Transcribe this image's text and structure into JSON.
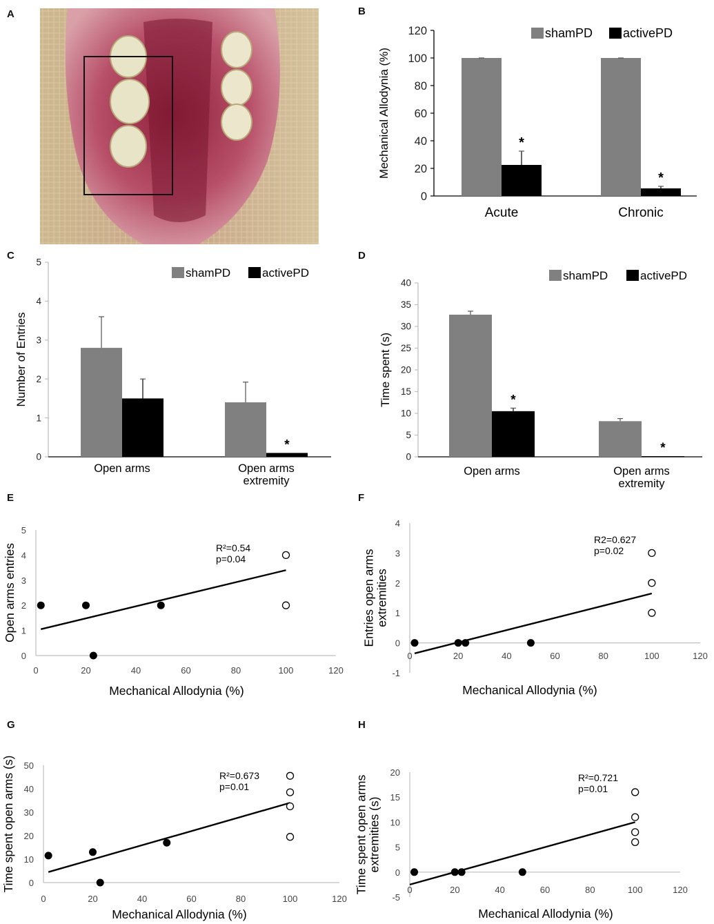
{
  "panel_labels": [
    "A",
    "B",
    "C",
    "D",
    "E",
    "F",
    "G",
    "H"
  ],
  "photo": {
    "description": "Rat maxilla with periodontal disease region boxed"
  },
  "colors": {
    "sham": "#808080",
    "active": "#000000",
    "axis": "#000000",
    "soft_axis": "#bfbfbf"
  },
  "chart_data": [
    {
      "id": "B",
      "type": "bar",
      "ylabel": "Mechanical Allodynia (%)",
      "ylim": [
        0,
        120
      ],
      "yticks": [
        0,
        20,
        40,
        60,
        80,
        100,
        120
      ],
      "categories": [
        "Acute",
        "Chronic"
      ],
      "legend": [
        "shamPD",
        "activePD"
      ],
      "series": [
        {
          "name": "shamPD",
          "values": [
            100,
            100
          ],
          "errors": [
            0,
            0
          ]
        },
        {
          "name": "activePD",
          "values": [
            22.5,
            5.5
          ],
          "errors": [
            10,
            1.5
          ]
        }
      ],
      "stars": [
        "*",
        "*"
      ]
    },
    {
      "id": "C",
      "type": "bar",
      "ylabel": "Number of Entries",
      "ylim": [
        0,
        5
      ],
      "yticks": [
        0,
        1,
        2,
        3,
        4,
        5
      ],
      "categories": [
        "Open arms",
        "Open arms extremity"
      ],
      "legend": [
        "shamPD",
        "activePD"
      ],
      "series": [
        {
          "name": "shamPD",
          "values": [
            2.8,
            1.4
          ],
          "errors": [
            0.8,
            0.52
          ]
        },
        {
          "name": "activePD",
          "values": [
            1.5,
            0.1
          ],
          "errors": [
            0.5,
            0
          ]
        }
      ],
      "stars": [
        "",
        "*"
      ]
    },
    {
      "id": "D",
      "type": "bar",
      "ylabel": "Time spent (s)",
      "ylim": [
        0,
        40
      ],
      "yticks": [
        0,
        5,
        10,
        15,
        20,
        25,
        30,
        35,
        40
      ],
      "categories": [
        "Open arms",
        "Open arms extremity"
      ],
      "legend": [
        "shamPD",
        "activePD"
      ],
      "series": [
        {
          "name": "shamPD",
          "values": [
            32.7,
            8.2
          ],
          "errors": [
            0.8,
            0.6
          ]
        },
        {
          "name": "activePD",
          "values": [
            10.5,
            0.15
          ],
          "errors": [
            0.7,
            0
          ]
        }
      ],
      "stars": [
        "*",
        "*"
      ]
    },
    {
      "id": "E",
      "type": "scatter",
      "xlabel": "Mechanical Allodynia (%)",
      "ylabel": "Open arms entries",
      "xlim": [
        0,
        120
      ],
      "ylim": [
        0,
        5
      ],
      "xticks": [
        0,
        20,
        40,
        60,
        80,
        100,
        120
      ],
      "yticks": [
        0,
        1,
        2,
        3,
        4,
        5
      ],
      "annotation": [
        "R²=0.54",
        "p=0.04"
      ],
      "filled": [
        [
          2,
          2
        ],
        [
          20,
          2
        ],
        [
          23,
          0
        ],
        [
          50,
          2
        ]
      ],
      "open": [
        [
          100,
          4
        ],
        [
          100,
          2
        ]
      ],
      "fit": [
        [
          2,
          1.05
        ],
        [
          100,
          3.4
        ]
      ]
    },
    {
      "id": "F",
      "type": "scatter",
      "xlabel": "Mechanical Allodynia (%)",
      "ylabel": "Entries open arms extremities",
      "xlim": [
        0,
        120
      ],
      "ylim": [
        -1,
        4
      ],
      "xticks": [
        0,
        20,
        40,
        60,
        80,
        100,
        120
      ],
      "yticks": [
        -1,
        0,
        1,
        2,
        3,
        4
      ],
      "annotation": [
        "R2=0.627",
        "p=0.02"
      ],
      "filled": [
        [
          2,
          0
        ],
        [
          20,
          0
        ],
        [
          23,
          0
        ],
        [
          50,
          0
        ]
      ],
      "open": [
        [
          100,
          3
        ],
        [
          100,
          2
        ],
        [
          100,
          1
        ]
      ],
      "fit": [
        [
          2,
          -0.35
        ],
        [
          100,
          1.65
        ]
      ]
    },
    {
      "id": "G",
      "type": "scatter",
      "xlabel": "Mechanical Allodynia (%)",
      "ylabel": "Time spent open arms (s)",
      "xlim": [
        0,
        120
      ],
      "ylim": [
        0,
        50
      ],
      "xticks": [
        0,
        20,
        40,
        60,
        80,
        100,
        120
      ],
      "yticks": [
        0,
        10,
        20,
        30,
        40,
        50
      ],
      "annotation": [
        "R²=0.673",
        "p=0.01"
      ],
      "filled": [
        [
          2,
          11.5
        ],
        [
          20,
          13
        ],
        [
          23,
          0
        ],
        [
          50,
          17
        ]
      ],
      "open": [
        [
          100,
          45.5
        ],
        [
          100,
          38.5
        ],
        [
          100,
          32.5
        ],
        [
          100,
          19.5
        ]
      ],
      "fit": [
        [
          2,
          4.5
        ],
        [
          100,
          34
        ]
      ]
    },
    {
      "id": "H",
      "type": "scatter",
      "xlabel": "Mechanical Allodynia (%)",
      "ylabel": "Time spent open arms extremities (s)",
      "xlim": [
        0,
        120
      ],
      "ylim": [
        -5,
        20
      ],
      "xticks": [
        0,
        20,
        40,
        60,
        80,
        100,
        120
      ],
      "yticks": [
        -5,
        0,
        5,
        10,
        15,
        20
      ],
      "annotation": [
        "R²=0.721",
        "p=0.01"
      ],
      "filled": [
        [
          2,
          0
        ],
        [
          20,
          0
        ],
        [
          23,
          0
        ],
        [
          50,
          0
        ]
      ],
      "open": [
        [
          100,
          16
        ],
        [
          100,
          11
        ],
        [
          100,
          8
        ],
        [
          100,
          6
        ]
      ],
      "fit": [
        [
          0,
          -2.5
        ],
        [
          100,
          10
        ]
      ]
    }
  ]
}
